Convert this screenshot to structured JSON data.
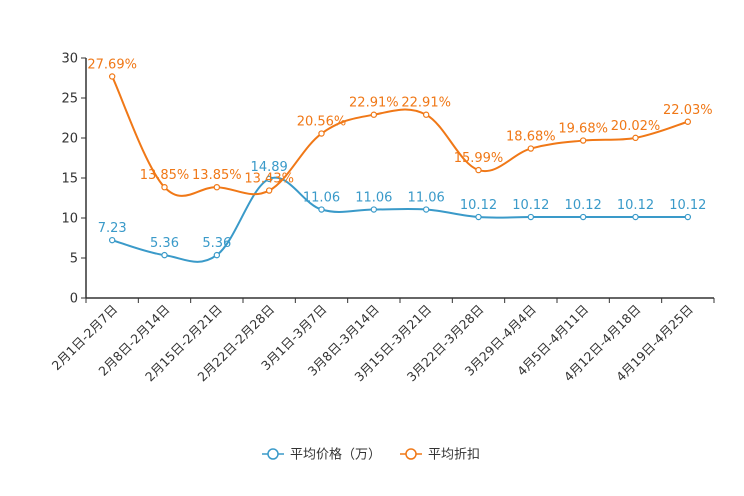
{
  "chart_data": {
    "type": "line",
    "title": "",
    "xlabel": "",
    "ylabel": "",
    "ylim": [
      0,
      30
    ],
    "yticks": [
      0,
      5,
      10,
      15,
      20,
      25,
      30
    ],
    "grid": false,
    "legend_position": "bottom",
    "categories": [
      "2月1日-2月7日",
      "2月8日-2月14日",
      "2月15日-2月21日",
      "2月22日-2月28日",
      "3月1日-3月7日",
      "3月8日-3月14日",
      "3月15日-3月21日",
      "3月22日-3月28日",
      "3月29日-4月4日",
      "4月5日-4月11日",
      "4月12日-4月18日",
      "4月19日-4月25日"
    ],
    "series": [
      {
        "name": "平均价格（万）",
        "color": "#3a9ac9",
        "values": [
          7.23,
          5.36,
          5.36,
          14.89,
          11.06,
          11.06,
          11.06,
          10.12,
          10.12,
          10.12,
          10.12,
          10.12
        ],
        "labels": [
          "7.23",
          "5.36",
          "5.36",
          "14.89",
          "11.06",
          "11.06",
          "11.06",
          "10.12",
          "10.12",
          "10.12",
          "10.12",
          "10.12"
        ]
      },
      {
        "name": "平均折扣",
        "color": "#f07817",
        "values": [
          27.69,
          13.85,
          13.85,
          13.43,
          20.56,
          22.91,
          22.91,
          15.99,
          18.68,
          19.68,
          20.02,
          22.03
        ],
        "labels": [
          "27.69%",
          "13.85%",
          "13.85%",
          "13.43%",
          "20.56%",
          "22.91%",
          "22.91%",
          "15.99%",
          "18.68%",
          "19.68%",
          "20.02%",
          "22.03%"
        ]
      }
    ]
  }
}
